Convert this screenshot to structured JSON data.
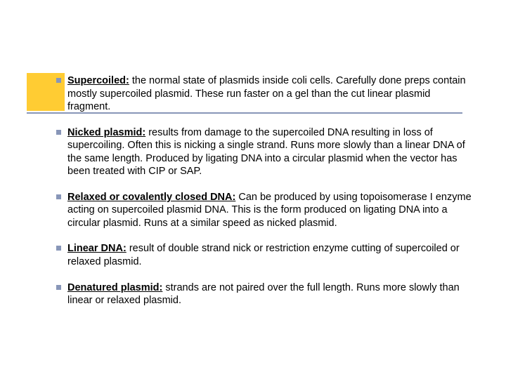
{
  "colors": {
    "accent_block": "#ffcc33",
    "accent_line": "#8896b8",
    "bullet": "#8896b8",
    "text": "#000000",
    "background": "#ffffff"
  },
  "paragraphs": [
    {
      "term": "Supercoiled:",
      "body": " the normal state of plasmids inside coli cells. Carefully done preps contain mostly supercoiled plasmid. These run faster on a gel than the cut linear plasmid fragment."
    },
    {
      "term": "Nicked plasmid:",
      "body": " results from damage to the supercoiled DNA resulting in loss of supercoiling. Often this is nicking a single strand. Runs more slowly than a linear DNA of the same length. Produced by ligating DNA into a circular plasmid when the vector has been treated with CIP or SAP."
    },
    {
      "term": "Relaxed or covalently closed DNA:",
      "body": " Can be produced by using topoisomerase I enzyme acting on supercoiled plasmid DNA. This is the form produced on ligating DNA into a circular plasmid. Runs at a similar speed as nicked plasmid."
    },
    {
      "term": "Linear DNA:",
      "body": " result of double strand nick or restriction enzyme cutting of supercoiled or relaxed plasmid."
    },
    {
      "term": "Denatured plasmid:",
      "body": " strands are not paired over the full length. Runs more slowly than linear or relaxed plasmid."
    }
  ],
  "typography": {
    "font_family": "Arial",
    "font_size_pt": 11,
    "line_height": 1.28
  }
}
